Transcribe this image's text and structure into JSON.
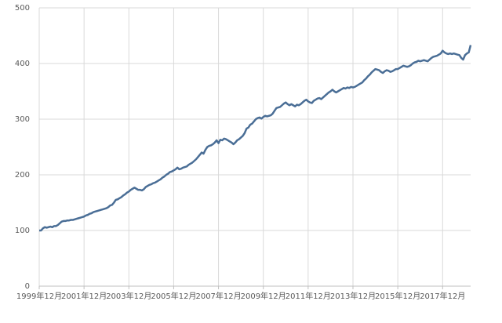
{
  "chart_data": {
    "type": "line",
    "color": "#4a6e96",
    "grid": true,
    "ylim": [
      0,
      500
    ],
    "yticks": [
      0,
      100,
      200,
      300,
      400,
      500
    ],
    "x": [
      "1999年12月",
      null,
      null,
      null,
      null,
      null,
      null,
      null,
      null,
      null,
      null,
      null,
      null,
      null,
      null,
      null,
      null,
      null,
      null,
      null,
      null,
      null,
      null,
      null,
      "2001年12月",
      null,
      null,
      null,
      null,
      null,
      null,
      null,
      null,
      null,
      null,
      null,
      null,
      null,
      null,
      null,
      null,
      null,
      null,
      null,
      null,
      null,
      null,
      null,
      "2003年12月",
      null,
      null,
      null,
      null,
      null,
      null,
      null,
      null,
      null,
      null,
      null,
      null,
      null,
      null,
      null,
      null,
      null,
      null,
      null,
      null,
      null,
      null,
      null,
      "2005年12月",
      null,
      null,
      null,
      null,
      null,
      null,
      null,
      null,
      null,
      null,
      null,
      null,
      null,
      null,
      null,
      null,
      null,
      null,
      null,
      null,
      null,
      null,
      null,
      "2007年12月",
      null,
      null,
      null,
      null,
      null,
      null,
      null,
      null,
      null,
      null,
      null,
      null,
      null,
      null,
      null,
      null,
      null,
      null,
      null,
      null,
      null,
      null,
      null,
      "2009年12月",
      null,
      null,
      null,
      null,
      null,
      null,
      null,
      null,
      null,
      null,
      null,
      null,
      null,
      null,
      null,
      null,
      null,
      null,
      null,
      null,
      null,
      null,
      null,
      "2011年12月",
      null,
      null,
      null,
      null,
      null,
      null,
      null,
      null,
      null,
      null,
      null,
      null,
      null,
      null,
      null,
      null,
      null,
      null,
      null,
      null,
      null,
      null,
      null,
      "2013年12月",
      null,
      null,
      null,
      null,
      null,
      null,
      null,
      null,
      null,
      null,
      null,
      null,
      null,
      null,
      null,
      null,
      null,
      null,
      null,
      null,
      null,
      null,
      null,
      "2015年12月",
      null,
      null,
      null,
      null,
      null,
      null,
      null,
      null,
      null,
      null,
      null,
      null,
      null,
      null,
      null,
      null,
      null,
      null,
      null,
      null,
      null,
      null,
      null,
      "2017年12月",
      null,
      null,
      null,
      null,
      null,
      null,
      null,
      null,
      null,
      null,
      null,
      null,
      null,
      null,
      null
    ],
    "values": [
      100,
      100,
      104,
      106,
      105,
      106,
      107,
      106,
      108,
      108,
      110,
      113,
      116,
      117,
      117,
      118,
      118,
      119,
      119,
      120,
      121,
      122,
      123,
      124,
      125,
      127,
      128,
      130,
      131,
      133,
      134,
      135,
      136,
      137,
      138,
      139,
      140,
      142,
      145,
      146,
      150,
      155,
      156,
      158,
      160,
      163,
      165,
      168,
      170,
      173,
      175,
      177,
      175,
      173,
      173,
      172,
      174,
      178,
      180,
      182,
      183,
      185,
      186,
      188,
      190,
      192,
      195,
      197,
      200,
      202,
      205,
      206,
      208,
      210,
      213,
      210,
      211,
      213,
      214,
      215,
      218,
      220,
      222,
      225,
      228,
      232,
      236,
      240,
      238,
      245,
      250,
      252,
      253,
      255,
      258,
      262,
      257,
      263,
      262,
      265,
      264,
      262,
      260,
      258,
      255,
      258,
      262,
      264,
      267,
      270,
      275,
      283,
      285,
      290,
      292,
      296,
      300,
      302,
      303,
      301,
      304,
      306,
      305,
      306,
      307,
      310,
      315,
      320,
      321,
      322,
      325,
      328,
      330,
      327,
      325,
      327,
      325,
      323,
      326,
      325,
      327,
      330,
      333,
      335,
      332,
      330,
      329,
      333,
      335,
      337,
      338,
      336,
      339,
      342,
      345,
      348,
      350,
      353,
      350,
      348,
      350,
      352,
      354,
      356,
      355,
      357,
      356,
      358,
      357,
      358,
      360,
      362,
      364,
      366,
      370,
      373,
      377,
      380,
      384,
      387,
      390,
      389,
      388,
      385,
      383,
      386,
      388,
      387,
      385,
      386,
      388,
      390,
      390,
      392,
      394,
      396,
      395,
      394,
      395,
      397,
      400,
      402,
      403,
      405,
      404,
      405,
      406,
      405,
      404,
      407,
      410,
      412,
      413,
      414,
      416,
      418,
      423,
      420,
      418,
      417,
      418,
      417,
      418,
      417,
      416,
      415,
      410,
      407,
      415,
      418,
      420,
      433
    ]
  }
}
